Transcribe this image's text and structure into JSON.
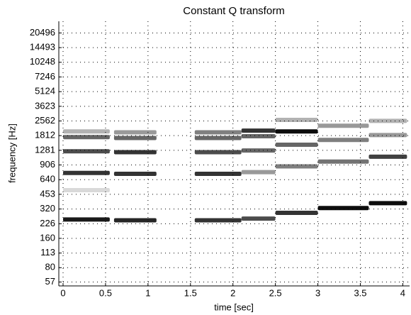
{
  "chart_data": {
    "type": "spectrogram",
    "title": "Constant Q transform",
    "x_label": "time [sec]",
    "y_label": "frequency [Hz]",
    "xlim": [
      -0.05,
      4.08
    ],
    "xticks": [
      0,
      0.5,
      1,
      1.5,
      2,
      2.5,
      3,
      3.5,
      4
    ],
    "ylim": [
      52,
      27000
    ],
    "yscale": "log",
    "yticks": [
      57,
      80,
      113,
      160,
      226,
      320,
      453,
      640,
      906,
      1281,
      1812,
      2562,
      3623,
      5124,
      7246,
      10248,
      14493,
      20496
    ],
    "grid": true,
    "color": "#000000",
    "components": [
      {
        "start": 0,
        "end": 0.55,
        "frequency": 250,
        "level": 0.9
      },
      {
        "start": 0,
        "end": 0.55,
        "frequency": 500,
        "level": 0.15
      },
      {
        "start": 0,
        "end": 0.55,
        "frequency": 750,
        "level": 0.8
      },
      {
        "start": 0,
        "end": 0.55,
        "frequency": 1250,
        "level": 0.7
      },
      {
        "start": 0,
        "end": 0.55,
        "frequency": 1750,
        "level": 0.6
      },
      {
        "start": 0,
        "end": 0.55,
        "frequency": 2000,
        "level": 0.3
      },
      {
        "start": 0.6,
        "end": 1.1,
        "frequency": 245,
        "level": 0.85
      },
      {
        "start": 0.6,
        "end": 1.1,
        "frequency": 735,
        "level": 0.8
      },
      {
        "start": 0.6,
        "end": 1.1,
        "frequency": 1225,
        "level": 0.8
      },
      {
        "start": 0.6,
        "end": 1.1,
        "frequency": 1715,
        "level": 0.6
      },
      {
        "start": 0.6,
        "end": 1.1,
        "frequency": 1960,
        "level": 0.4
      },
      {
        "start": 1.55,
        "end": 2.1,
        "frequency": 245,
        "level": 0.8
      },
      {
        "start": 1.55,
        "end": 2.1,
        "frequency": 735,
        "level": 0.8
      },
      {
        "start": 1.55,
        "end": 2.1,
        "frequency": 1225,
        "level": 0.7
      },
      {
        "start": 1.55,
        "end": 2.1,
        "frequency": 1715,
        "level": 0.6
      },
      {
        "start": 1.55,
        "end": 2.1,
        "frequency": 1960,
        "level": 0.5
      },
      {
        "start": 2.1,
        "end": 2.5,
        "frequency": 255,
        "level": 0.7
      },
      {
        "start": 2.1,
        "end": 2.5,
        "frequency": 765,
        "level": 0.4
      },
      {
        "start": 2.1,
        "end": 2.5,
        "frequency": 1275,
        "level": 0.6
      },
      {
        "start": 2.1,
        "end": 2.5,
        "frequency": 1785,
        "level": 0.6
      },
      {
        "start": 2.1,
        "end": 2.5,
        "frequency": 2040,
        "level": 0.8
      },
      {
        "start": 2.5,
        "end": 3.0,
        "frequency": 292,
        "level": 0.8
      },
      {
        "start": 2.5,
        "end": 3.0,
        "frequency": 876,
        "level": 0.5
      },
      {
        "start": 2.5,
        "end": 3.0,
        "frequency": 1460,
        "level": 0.6
      },
      {
        "start": 2.5,
        "end": 3.0,
        "frequency": 2000,
        "level": 0.95
      },
      {
        "start": 2.5,
        "end": 3.0,
        "frequency": 2628,
        "level": 0.3
      },
      {
        "start": 3.0,
        "end": 3.6,
        "frequency": 327,
        "level": 0.95
      },
      {
        "start": 3.0,
        "end": 3.6,
        "frequency": 981,
        "level": 0.55
      },
      {
        "start": 3.0,
        "end": 3.6,
        "frequency": 1635,
        "level": 0.5
      },
      {
        "start": 3.0,
        "end": 3.6,
        "frequency": 2289,
        "level": 0.4
      },
      {
        "start": 3.6,
        "end": 4.05,
        "frequency": 367,
        "level": 0.95
      },
      {
        "start": 3.6,
        "end": 4.05,
        "frequency": 1101,
        "level": 0.75
      },
      {
        "start": 3.6,
        "end": 4.05,
        "frequency": 1835,
        "level": 0.4
      },
      {
        "start": 3.6,
        "end": 4.05,
        "frequency": 2569,
        "level": 0.3
      }
    ]
  }
}
